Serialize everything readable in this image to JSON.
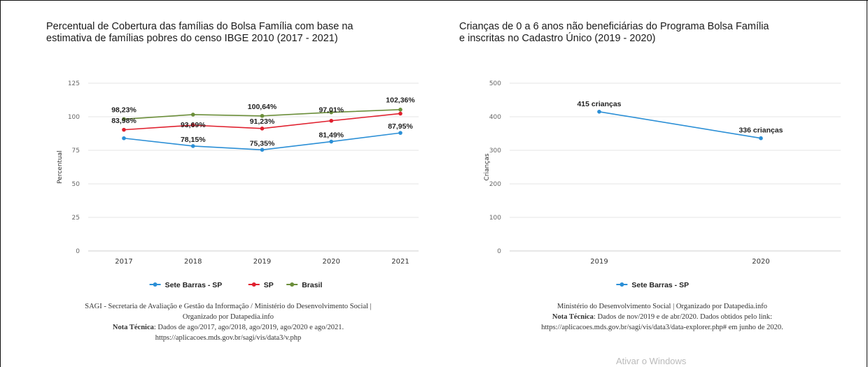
{
  "charts": [
    {
      "type": "line",
      "title": "Percentual de Cobertura das famílias do Bolsa Família com base na estimativa de famílias pobres do censo IBGE 2010 (2017 - 2021)",
      "title_line1": "Percentual de Cobertura das famílias do Bolsa Família com base na",
      "title_line2": "estimativa de famílias pobres do censo IBGE 2010 (2017 - 2021)",
      "ylabel": "Percentual",
      "xlabel": "",
      "ylim": [
        0,
        125
      ],
      "yticks": [
        0,
        25,
        50,
        75,
        100,
        125
      ],
      "categories": [
        "2017",
        "2018",
        "2019",
        "2020",
        "2021"
      ],
      "legend_position": "bottom",
      "grid": true,
      "series": [
        {
          "name": "Sete Barras - SP",
          "color": "#2b8fd6",
          "values": [
            83.98,
            78.15,
            75.35,
            81.49,
            87.95
          ],
          "labels": [
            "83,98%",
            "78,15%",
            "75,35%",
            "81,49%",
            "87,95%"
          ],
          "show_labels": true
        },
        {
          "name": "SP",
          "color": "#e0202e",
          "values": [
            90.3,
            93.69,
            91.23,
            97.01,
            102.36
          ],
          "labels": [
            "",
            "93,69%",
            "91,23%",
            "97,01%",
            "102,36%"
          ],
          "show_labels": false
        },
        {
          "name": "Brasil",
          "color": "#6b8e3a",
          "values": [
            98.23,
            101.6,
            100.64,
            103.3,
            105.3
          ],
          "labels": [
            "98,23%",
            "",
            "100,64%",
            "",
            ""
          ],
          "show_labels": false
        }
      ],
      "extra_labels": [
        {
          "text": "98,23%",
          "cat": 0,
          "value": 98.23,
          "dy": -10
        },
        {
          "text": "93,69%",
          "cat": 1,
          "value": 93.69,
          "dy": 3
        },
        {
          "text": "100,64%",
          "cat": 2,
          "value": 100.64,
          "dy": -10
        },
        {
          "text": "91,23%",
          "cat": 2,
          "value": 91.23,
          "dy": -7
        },
        {
          "text": "97,01%",
          "cat": 3,
          "value": 97.01,
          "dy": -12
        },
        {
          "text": "102,36%",
          "cat": 4,
          "value": 102.36,
          "dy": -16
        },
        {
          "text": "83,98%",
          "cat": 0,
          "value": 83.98,
          "dy": -22
        },
        {
          "text": "78,15%",
          "cat": 1,
          "value": 78.15,
          "dy": -6
        },
        {
          "text": "75,35%",
          "cat": 2,
          "value": 75.35,
          "dy": -6
        },
        {
          "text": "81,49%",
          "cat": 3,
          "value": 81.49,
          "dy": -6
        },
        {
          "text": "87,95%",
          "cat": 4,
          "value": 87.95,
          "dy": -6
        }
      ],
      "source_line1": "SAGI - Secretaria de Avaliação e Gestão da Informação / Ministério do Desenvolvimento Social |",
      "source_line2": "Organizado por Datapedia.info",
      "note_label": "Nota Técnica",
      "note_text": ": Dados de ago/2017, ago/2018, ago/2019, ago/2020 e ago/2021.",
      "note_link": "https://aplicacoes.mds.gov.br/sagi/vis/data3/v.php"
    },
    {
      "type": "line",
      "title_line1": "Crianças de 0 a 6 anos não beneficiárias do Programa Bolsa Família",
      "title_line2": "e inscritas no Cadastro Único (2019 - 2020)",
      "ylabel": "Crianças",
      "xlabel": "",
      "ylim": [
        0,
        500
      ],
      "yticks": [
        0,
        100,
        200,
        300,
        400,
        500
      ],
      "categories": [
        "2019",
        "2020"
      ],
      "legend_position": "bottom",
      "grid": true,
      "series": [
        {
          "name": "Sete Barras - SP",
          "color": "#2b8fd6",
          "values": [
            415,
            336
          ],
          "labels": [
            "415 crianças",
            "336 crianças"
          ]
        }
      ],
      "source_line1": "Ministério do Desenvolvimento Social | Organizado por Datapedia.info",
      "note_label": "Nota Técnica",
      "note_text": ": Dados de nov/2019 e de abr/2020. Dados obtidos pelo link:",
      "note_link": "https://aplicacoes.mds.gov.br/sagi/vis/data3/data-explorer.php# em junho de 2020."
    }
  ],
  "watermark": "Ativar o Windows"
}
